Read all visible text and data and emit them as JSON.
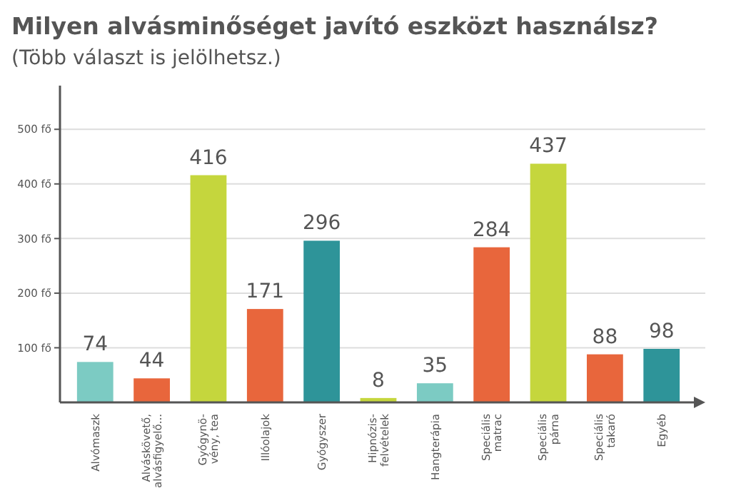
{
  "chart_data": {
    "type": "bar",
    "title": "Milyen alvásminőséget javító eszközt használsz?",
    "subtitle": "(Több választ is jelölhetsz.)",
    "categories": [
      "Alvómaszk",
      "Alváskövető,\nalvásfigyelő...",
      "Gyógynö-\nvény, tea",
      "Illóolajok",
      "Gyógyszer",
      "Hipnózis-\nfelvételek",
      "Hangterápia",
      "Speciális\nmatrac",
      "Speciális\npárna",
      "Speciális\ntakaró",
      "Egyéb"
    ],
    "values": [
      74,
      44,
      416,
      171,
      296,
      8,
      35,
      284,
      437,
      88,
      98
    ],
    "colors": [
      "#7ccbc3",
      "#e8663c",
      "#c5d63d",
      "#e8663c",
      "#2e9499",
      "#c5d63d",
      "#7ccbc3",
      "#e8663c",
      "#c5d63d",
      "#e8663c",
      "#2e9499"
    ],
    "ylim": [
      0,
      580
    ],
    "yticks": [
      {
        "value": 100,
        "label": "100 fő"
      },
      {
        "value": 200,
        "label": "200 fő"
      },
      {
        "value": 300,
        "label": "300 fő"
      },
      {
        "value": 400,
        "label": "400 fő"
      },
      {
        "value": 500,
        "label": "500 fő"
      }
    ],
    "grid": "y",
    "data_labels": true
  }
}
